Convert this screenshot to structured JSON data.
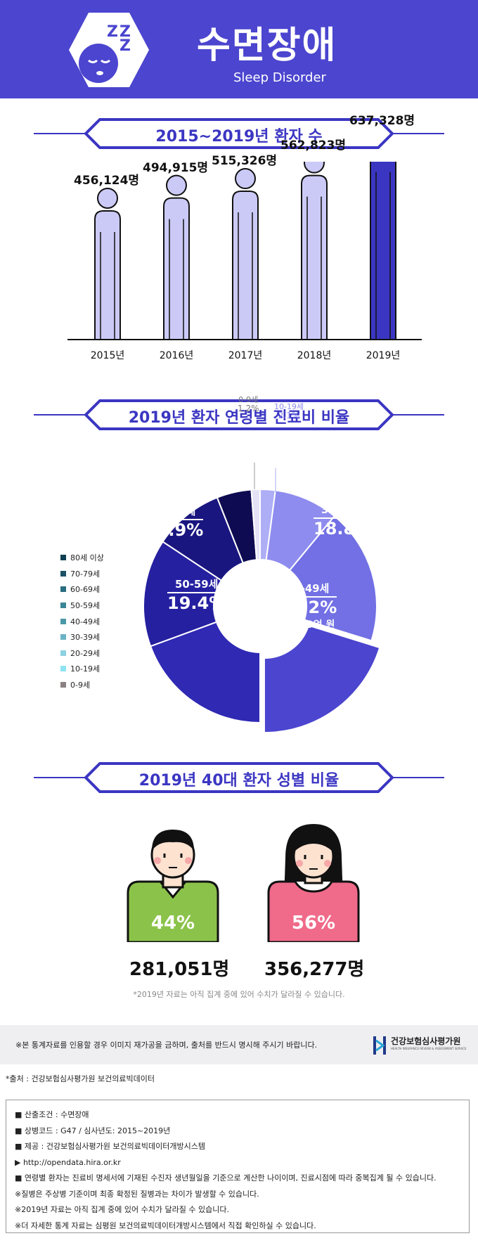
{
  "header": {
    "title": "수면장애",
    "subtitle": "Sleep Disorder",
    "logo_icon": "sleeping-face-icon",
    "logo_text": "Z Z Z"
  },
  "colors": {
    "brand": "#4b45cf",
    "bar_light": "#cbcaf7",
    "bar_dark": "#3b36c2"
  },
  "section1": {
    "title": "2015~2019년 환자 수"
  },
  "section2": {
    "title": "2019년 환자 연령별 진료비 비율"
  },
  "section3": {
    "title": "2019년 40대 환자 성별 비율"
  },
  "chart_data": [
    {
      "type": "bar",
      "categories": [
        "2015년",
        "2016년",
        "2017년",
        "2018년",
        "2019년"
      ],
      "values": [
        456124,
        494915,
        515326,
        562823,
        637328
      ],
      "value_labels": [
        "456,124명",
        "494,915명",
        "515,326명",
        "562,823명",
        "637,328명"
      ],
      "highlight_index": 4
    },
    {
      "type": "pie",
      "legend": [
        "80세 이상",
        "70-79세",
        "60-69세",
        "50-59세",
        "40-49세",
        "30-39세",
        "20-29세",
        "10-19세",
        "0-9세"
      ],
      "legend_colors": [
        "#0f3f52",
        "#1c5166",
        "#2a6d80",
        "#3b8596",
        "#4b98a8",
        "#6bb3c6",
        "#8ed1e2",
        "#8ee3f0",
        "#8a8282"
      ],
      "slices": [
        {
          "label": "10-19세",
          "value": 2.1,
          "display": "2.1%",
          "color": "#aeaef6"
        },
        {
          "label": "20-29세",
          "value": 8.9,
          "display": "8.9%",
          "color": "#8e8cee"
        },
        {
          "label": "30-39세",
          "value": 18.8,
          "display": "18.8%",
          "color": "#7270e4"
        },
        {
          "label": "40-49세",
          "value": 20.2,
          "display": "20.2%",
          "color": "#4b45cf",
          "note": "약 139억 원"
        },
        {
          "label": "50-59세",
          "value": 19.4,
          "display": "19.4%",
          "color": "#2f29b4"
        },
        {
          "label": "60-69세",
          "value": 14.9,
          "display": "14.9%",
          "color": "#2520a0"
        },
        {
          "label": "70-79세",
          "value": 9.7,
          "display": "9.7%",
          "color": "#1a1680"
        },
        {
          "label": "80세이상",
          "value": 4.8,
          "display": "4.8%",
          "color": "#0e0b52"
        },
        {
          "label": "0-9세",
          "value": 1.2,
          "display": "1.2%",
          "color": "#e4e3f6"
        }
      ]
    },
    {
      "type": "bar",
      "categories": [
        "남성",
        "여성"
      ],
      "values": [
        44,
        56
      ],
      "value_labels": [
        "44%",
        "56%"
      ],
      "counts": [
        "281,051명",
        "356,277명"
      ]
    }
  ],
  "gender": {
    "male_pct": "44%",
    "female_pct": "56%",
    "male_count": "281,051명",
    "female_count": "356,277명",
    "note": "*2019년 자료는 아직 집계 중에 있어 수치가 달라질 수 있습니다."
  },
  "footer": {
    "notice": "※본 통계자료를 인용할 경우 이미지 재가공을 금하며, 출처를 반드시 명시해 주시기 바랍니다.",
    "org_name": "건강보험심사평가원",
    "org_sub": "HEALTH INSURANCE REVIEW & ASSESSMENT SERVICE",
    "source": "*출처 : 건강보험심사평가원 보건의료빅데이터",
    "info": [
      "■ 산출조건 : 수면장애",
      "■ 상병코드 : G47 / 심사년도: 2015~2019년",
      "■ 제공 : 건강보험심사평가원 보건의료빅데이터개방시스템",
      "▶ http://opendata.hira.or.kr",
      "■ 연령별 환자는 진료비 명세서에 기재된 수진자 생년월일을 기준으로 계산한 나이이며, 진료시점에 따라 중복집계 될 수 있습니다.",
      "※질병은 주상병 기준이며 최종 확정된 질병과는 차이가 발생할 수 있습니다.",
      "※2019년 자료는 아직 집계 중에 있어 수치가 달라질 수 있습니다.",
      "※더 자세한 통계 자료는 심평원 보건의료빅데이터개방시스템에서 직접 확인하실 수 있습니다."
    ]
  }
}
